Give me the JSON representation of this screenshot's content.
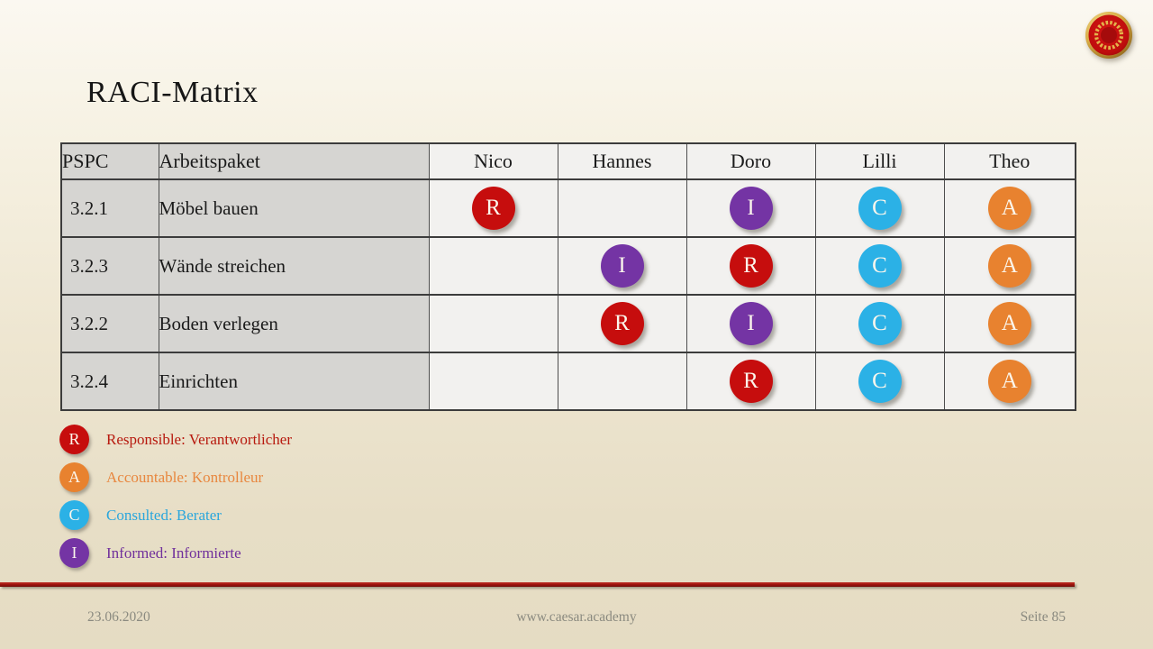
{
  "slide": {
    "title": "RACI-Matrix"
  },
  "logo": {
    "ring_color": "#C9992F",
    "face_color": "#C00E0E",
    "wreath_color": "#E3B34A"
  },
  "table": {
    "headers": [
      "PSPC",
      "Arbeitspaket",
      "Nico",
      "Hannes",
      "Doro",
      "Lilli",
      "Theo"
    ],
    "rows": [
      {
        "pspc": "3.2.1",
        "arbeitspaket": "Möbel bauen",
        "assignments": [
          "R",
          "",
          "I",
          "C",
          "A"
        ]
      },
      {
        "pspc": "3.2.3",
        "arbeitspaket": "Wände streichen",
        "assignments": [
          "",
          "I",
          "R",
          "C",
          "A"
        ]
      },
      {
        "pspc": "3.2.2",
        "arbeitspaket": "Boden verlegen",
        "assignments": [
          "",
          "R",
          "I",
          "C",
          "A"
        ]
      },
      {
        "pspc": "3.2.4",
        "arbeitspaket": "Einrichten",
        "assignments": [
          "",
          "",
          "R",
          "C",
          "A"
        ]
      }
    ]
  },
  "raci_colors": {
    "R": "#C60D0D",
    "A": "#E8822F",
    "C": "#2BB1E6",
    "I": "#7434A4"
  },
  "legend": [
    {
      "key": "R",
      "text": "Responsible: Verantwortlicher",
      "text_color": "#B7190E"
    },
    {
      "key": "A",
      "text": "Accountable: Kontrolleur",
      "text_color": "#E8873F"
    },
    {
      "key": "C",
      "text": "Consulted: Berater",
      "text_color": "#2AA6DC"
    },
    {
      "key": "I",
      "text": "Informed: Informierte",
      "text_color": "#70309B"
    }
  ],
  "footer": {
    "date": "23.06.2020",
    "url": "www.caesar.academy",
    "page": "Seite 85"
  }
}
